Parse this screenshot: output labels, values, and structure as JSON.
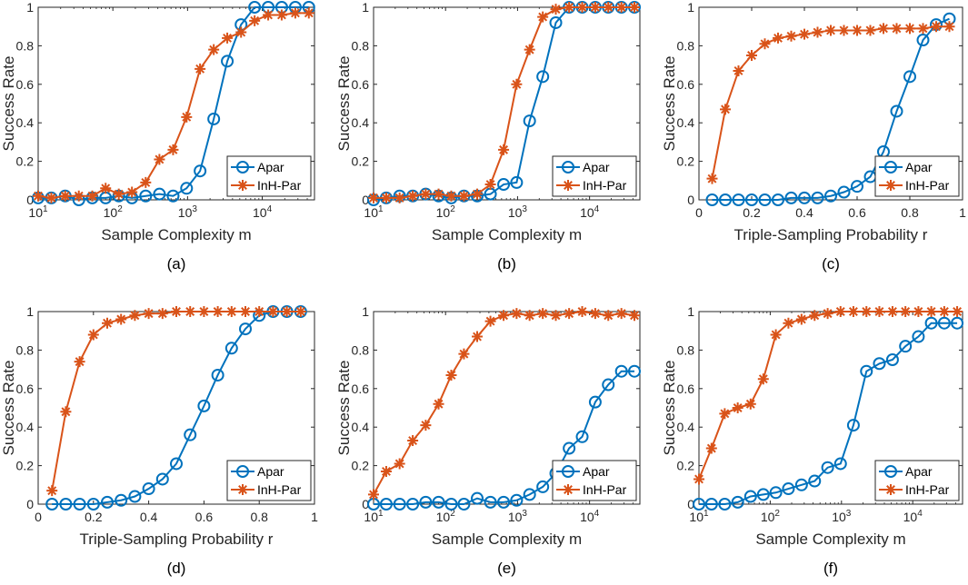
{
  "colors": {
    "apar": "#0072BD",
    "inh": "#D95319",
    "axis": "#262626"
  },
  "chart_data": [
    {
      "id": "a",
      "type": "line",
      "caption": "(a)",
      "xlabel": "Sample Complexity m",
      "ylabel": "Success Rate",
      "xscale": "log",
      "xlim": [
        10,
        50000
      ],
      "ylim": [
        0,
        1
      ],
      "xticks": [
        10,
        100,
        1000,
        10000
      ],
      "xticklabels": [
        "10",
        "10",
        "10",
        "10"
      ],
      "xtickexp": [
        "1",
        "2",
        "3",
        "4"
      ],
      "yticks": [
        0,
        0.2,
        0.4,
        0.6,
        0.8,
        1
      ],
      "yticklabels": [
        "0",
        "0.2",
        "0.4",
        "0.6",
        "0.8",
        "1"
      ],
      "legend": "bottom-right",
      "x": [
        10,
        15,
        23,
        35,
        53,
        80,
        120,
        180,
        275,
        420,
        640,
        970,
        1470,
        2240,
        3400,
        5200,
        7900,
        12000,
        18200,
        27700,
        42000
      ],
      "series": [
        {
          "name": "Apar",
          "marker": "circle",
          "values": [
            0.01,
            0.01,
            0.02,
            0.0,
            0.01,
            0.01,
            0.02,
            0.01,
            0.02,
            0.03,
            0.02,
            0.06,
            0.15,
            0.42,
            0.72,
            0.91,
            1.0,
            1.0,
            1.0,
            1.0,
            1.0
          ]
        },
        {
          "name": "InH-Par",
          "marker": "star",
          "values": [
            0.02,
            0.01,
            0.02,
            0.02,
            0.02,
            0.06,
            0.03,
            0.04,
            0.09,
            0.21,
            0.26,
            0.43,
            0.68,
            0.78,
            0.84,
            0.87,
            0.93,
            0.96,
            0.96,
            0.97,
            0.97
          ]
        }
      ]
    },
    {
      "id": "b",
      "type": "line",
      "caption": "(b)",
      "xlabel": "Sample Complexity m",
      "ylabel": "Success Rate",
      "xscale": "log",
      "xlim": [
        10,
        50000
      ],
      "ylim": [
        0,
        1
      ],
      "xticks": [
        10,
        100,
        1000,
        10000
      ],
      "xticklabels": [
        "10",
        "10",
        "10",
        "10"
      ],
      "xtickexp": [
        "1",
        "2",
        "3",
        "4"
      ],
      "yticks": [
        0,
        0.2,
        0.4,
        0.6,
        0.8,
        1
      ],
      "yticklabels": [
        "0",
        "0.2",
        "0.4",
        "0.6",
        "0.8",
        "1"
      ],
      "legend": "bottom-right",
      "x": [
        10,
        15,
        23,
        35,
        53,
        80,
        120,
        180,
        275,
        420,
        640,
        970,
        1470,
        2240,
        3400,
        5200,
        7900,
        12000,
        18200,
        27700,
        42000
      ],
      "series": [
        {
          "name": "Apar",
          "marker": "circle",
          "values": [
            0.0,
            0.01,
            0.02,
            0.02,
            0.03,
            0.02,
            0.01,
            0.02,
            0.02,
            0.03,
            0.08,
            0.09,
            0.41,
            0.64,
            0.92,
            1.0,
            1.0,
            1.0,
            1.0,
            1.0,
            1.0
          ]
        },
        {
          "name": "InH-Par",
          "marker": "star",
          "values": [
            0.01,
            0.01,
            0.01,
            0.02,
            0.03,
            0.03,
            0.02,
            0.02,
            0.03,
            0.08,
            0.26,
            0.6,
            0.78,
            0.95,
            0.99,
            1.0,
            1.0,
            1.0,
            1.0,
            1.0,
            1.0
          ]
        }
      ]
    },
    {
      "id": "c",
      "type": "line",
      "caption": "(c)",
      "xlabel": "Triple-Sampling Probability r",
      "ylabel": "Success Rate",
      "xscale": "linear",
      "xlim": [
        0,
        1
      ],
      "ylim": [
        0,
        1
      ],
      "xticks": [
        0,
        0.2,
        0.4,
        0.6,
        0.8,
        1
      ],
      "xticklabels": [
        "0",
        "0.2",
        "0.4",
        "0.6",
        "0.8",
        "1"
      ],
      "yticks": [
        0,
        0.2,
        0.4,
        0.6,
        0.8,
        1
      ],
      "yticklabels": [
        "0",
        "0.2",
        "0.4",
        "0.6",
        "0.8",
        "1"
      ],
      "legend": "bottom-right",
      "x": [
        0.05,
        0.1,
        0.15,
        0.2,
        0.25,
        0.3,
        0.35,
        0.4,
        0.45,
        0.5,
        0.55,
        0.6,
        0.65,
        0.7,
        0.75,
        0.8,
        0.85,
        0.9,
        0.95
      ],
      "series": [
        {
          "name": "Apar",
          "marker": "circle",
          "values": [
            0.0,
            0.0,
            0.0,
            0.0,
            0.0,
            0.0,
            0.01,
            0.01,
            0.01,
            0.02,
            0.04,
            0.07,
            0.12,
            0.25,
            0.46,
            0.64,
            0.83,
            0.91,
            0.94
          ]
        },
        {
          "name": "InH-Par",
          "marker": "star",
          "values": [
            0.11,
            0.47,
            0.67,
            0.75,
            0.81,
            0.84,
            0.85,
            0.86,
            0.87,
            0.88,
            0.88,
            0.88,
            0.88,
            0.89,
            0.89,
            0.89,
            0.89,
            0.9,
            0.9
          ]
        }
      ]
    },
    {
      "id": "d",
      "type": "line",
      "caption": "(d)",
      "xlabel": "Triple-Sampling Probability r",
      "ylabel": "Success Rate",
      "xscale": "linear",
      "xlim": [
        0,
        1
      ],
      "ylim": [
        0,
        1
      ],
      "xticks": [
        0,
        0.2,
        0.4,
        0.6,
        0.8,
        1
      ],
      "xticklabels": [
        "0",
        "0.2",
        "0.4",
        "0.6",
        "0.8",
        "1"
      ],
      "yticks": [
        0,
        0.2,
        0.4,
        0.6,
        0.8,
        1
      ],
      "yticklabels": [
        "0",
        "0.2",
        "0.4",
        "0.6",
        "0.8",
        "1"
      ],
      "legend": "bottom-right",
      "x": [
        0.05,
        0.1,
        0.15,
        0.2,
        0.25,
        0.3,
        0.35,
        0.4,
        0.45,
        0.5,
        0.55,
        0.6,
        0.65,
        0.7,
        0.75,
        0.8,
        0.85,
        0.9,
        0.95
      ],
      "series": [
        {
          "name": "Apar",
          "marker": "circle",
          "values": [
            0.0,
            0.0,
            0.0,
            0.0,
            0.01,
            0.02,
            0.04,
            0.08,
            0.13,
            0.21,
            0.36,
            0.51,
            0.67,
            0.81,
            0.91,
            0.98,
            1.0,
            1.0,
            1.0
          ]
        },
        {
          "name": "InH-Par",
          "marker": "star",
          "values": [
            0.07,
            0.48,
            0.74,
            0.88,
            0.94,
            0.96,
            0.98,
            0.99,
            0.99,
            1.0,
            1.0,
            1.0,
            1.0,
            1.0,
            1.0,
            1.0,
            1.0,
            1.0,
            1.0
          ]
        }
      ]
    },
    {
      "id": "e",
      "type": "line",
      "caption": "(e)",
      "xlabel": "Sample Complexity m",
      "ylabel": "Success Rate",
      "xscale": "log",
      "xlim": [
        10,
        50000
      ],
      "ylim": [
        0,
        1
      ],
      "xticks": [
        10,
        100,
        1000,
        10000
      ],
      "xticklabels": [
        "10",
        "10",
        "10",
        "10"
      ],
      "xtickexp": [
        "1",
        "2",
        "3",
        "4"
      ],
      "yticks": [
        0,
        0.2,
        0.4,
        0.6,
        0.8,
        1
      ],
      "yticklabels": [
        "0",
        "0.2",
        "0.4",
        "0.6",
        "0.8",
        "1"
      ],
      "legend": "bottom-right",
      "x": [
        10,
        15,
        23,
        35,
        53,
        80,
        120,
        180,
        275,
        420,
        640,
        970,
        1470,
        2240,
        3400,
        5200,
        7900,
        12000,
        18200,
        27700,
        42000
      ],
      "series": [
        {
          "name": "Apar",
          "marker": "circle",
          "values": [
            0.0,
            0.0,
            0.0,
            0.0,
            0.01,
            0.01,
            0.0,
            0.0,
            0.03,
            0.01,
            0.01,
            0.02,
            0.05,
            0.09,
            0.16,
            0.29,
            0.35,
            0.53,
            0.62,
            0.69,
            0.69
          ]
        },
        {
          "name": "InH-Par",
          "marker": "star",
          "values": [
            0.05,
            0.17,
            0.21,
            0.33,
            0.41,
            0.52,
            0.67,
            0.78,
            0.87,
            0.95,
            0.98,
            0.99,
            0.98,
            0.99,
            0.98,
            0.99,
            1.0,
            0.99,
            0.98,
            0.99,
            0.98
          ]
        }
      ]
    },
    {
      "id": "f",
      "type": "line",
      "caption": "(f)",
      "xlabel": "Sample Complexity m",
      "ylabel": "Success Rate",
      "xscale": "log",
      "xlim": [
        10,
        50000
      ],
      "ylim": [
        0,
        1
      ],
      "xticks": [
        10,
        100,
        1000,
        10000
      ],
      "xticklabels": [
        "10",
        "10",
        "10",
        "10"
      ],
      "xtickexp": [
        "1",
        "2",
        "3",
        "4"
      ],
      "yticks": [
        0,
        0.2,
        0.4,
        0.6,
        0.8,
        1
      ],
      "yticklabels": [
        "0",
        "0.2",
        "0.4",
        "0.6",
        "0.8",
        "1"
      ],
      "legend": "bottom-right",
      "x": [
        10,
        15,
        23,
        35,
        53,
        80,
        120,
        180,
        275,
        420,
        640,
        970,
        1470,
        2240,
        3400,
        5200,
        7900,
        12000,
        18200,
        27700,
        42000
      ],
      "series": [
        {
          "name": "Apar",
          "marker": "circle",
          "values": [
            0.0,
            0.0,
            0.0,
            0.01,
            0.04,
            0.05,
            0.06,
            0.08,
            0.1,
            0.12,
            0.19,
            0.21,
            0.41,
            0.69,
            0.73,
            0.75,
            0.82,
            0.87,
            0.94,
            0.94,
            0.94
          ]
        },
        {
          "name": "InH-Par",
          "marker": "star",
          "values": [
            0.13,
            0.29,
            0.47,
            0.5,
            0.52,
            0.65,
            0.88,
            0.94,
            0.96,
            0.98,
            0.99,
            1.0,
            1.0,
            1.0,
            1.0,
            1.0,
            1.0,
            1.0,
            1.0,
            1.0,
            1.0
          ]
        }
      ]
    }
  ]
}
